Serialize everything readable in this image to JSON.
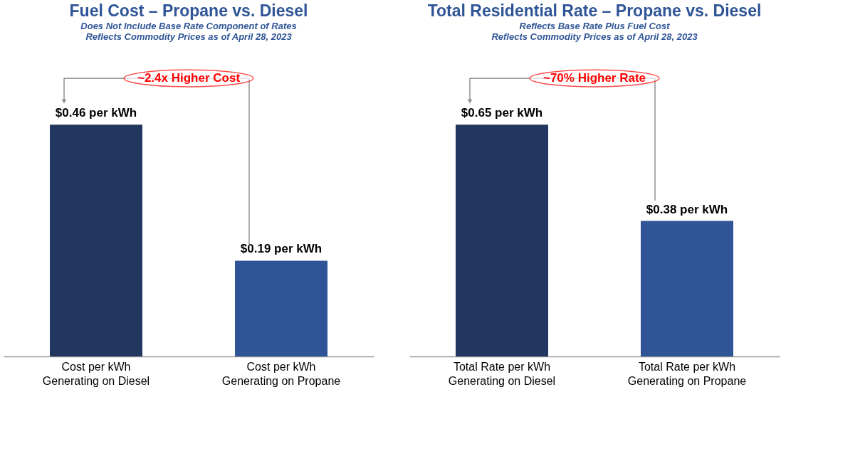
{
  "chart_data": [
    {
      "type": "bar",
      "title": "Fuel Cost – Propane vs. Diesel",
      "subtitle": "Does Not Include Base Rate Component of Rates\nReflects Commodity Prices as of April 28, 2023",
      "categories": [
        "Cost per kWh\nGenerating on Diesel",
        "Cost per kWh\nGenerating on Propane"
      ],
      "values": [
        0.46,
        0.19
      ],
      "colors": [
        "#22375f",
        "#2f5597"
      ],
      "value_labels": [
        "$0.46 per kWh",
        "$0.19 per kWh"
      ],
      "annotations": [
        "~2.4x Higher Cost"
      ],
      "tick_labels": "x",
      "grid": false
    },
    {
      "type": "bar",
      "title": "Total Residential Rate – Propane vs. Diesel",
      "subtitle": "Reflects Base Rate Plus Fuel Cost\nReflects Commodity Prices as of April 28, 2023",
      "categories": [
        "Total Rate per kWh\nGenerating on Diesel",
        "Total Rate per kWh\nGenerating on Propane"
      ],
      "values": [
        0.65,
        0.38
      ],
      "colors": [
        "#22375f",
        "#2f5597"
      ],
      "value_labels": [
        "$0.65 per kWh",
        "$0.38 per kWh"
      ],
      "annotations": [
        "~70% Higher Rate"
      ],
      "tick_labels": "x",
      "grid": false
    }
  ]
}
